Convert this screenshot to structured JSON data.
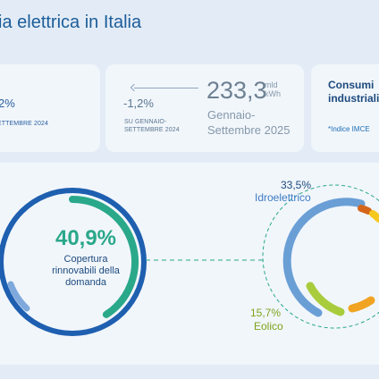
{
  "title": "ia elettrica in Italia",
  "card_left": {
    "value": "2%",
    "period": "ETTEMBRE 2024"
  },
  "card_mid": {
    "change": "-1,2%",
    "change_period_line1": "SU GENNAIO-",
    "change_period_line2": "SETTEMBRE 2024",
    "total_value": "233,3",
    "unit_line1": "mld",
    "unit_line2": "kWh",
    "period_line1": "Gennaio-",
    "period_line2": "Settembre 2025"
  },
  "card_right": {
    "title_line1": "Consumi",
    "title_line2": "industriali",
    "note": "*Indice IMCE"
  },
  "coverage": {
    "value": "40,9%",
    "label_line1": "Copertura",
    "label_line2": "rinnovabili della",
    "label_line3": "domanda",
    "fraction": 0.409
  },
  "sources": {
    "hydro": {
      "value": "33,5%",
      "name": "Idroelettrico"
    },
    "wind": {
      "value": "15,7%",
      "name": "Eolico"
    }
  },
  "colors": {
    "title": "#1c5d99",
    "coverage": "#2aa88a",
    "hydro": "#6a9fd6",
    "wind": "#a8cc3c",
    "solar": "#f1a322",
    "geothermal": "#e8791f",
    "bioenergy": "#f6c81e",
    "outer_ring": "#1e5fb0",
    "connector": "#2aa88a"
  }
}
